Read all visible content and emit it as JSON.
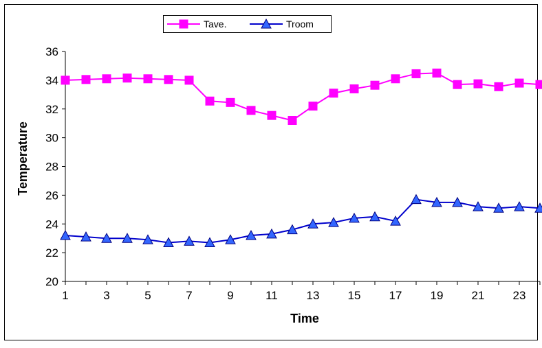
{
  "chart_data": {
    "type": "line",
    "title": "",
    "xlabel": "Time",
    "ylabel": "Temperature",
    "x": [
      1,
      2,
      3,
      4,
      5,
      6,
      7,
      8,
      9,
      10,
      11,
      12,
      13,
      14,
      15,
      16,
      17,
      18,
      19,
      20,
      21,
      22,
      23,
      24
    ],
    "x_tick_labels": [
      "1",
      "3",
      "5",
      "7",
      "9",
      "11",
      "13",
      "15",
      "17",
      "19",
      "21",
      "23"
    ],
    "y_tick_labels": [
      "20",
      "22",
      "24",
      "26",
      "28",
      "30",
      "32",
      "34",
      "36"
    ],
    "ylim": [
      20,
      36
    ],
    "xlim": [
      1,
      24
    ],
    "grid": false,
    "legend_position": "top-center",
    "series": [
      {
        "name": "Tave.",
        "color": "#ff00ff",
        "marker": "square",
        "values": [
          34.0,
          34.05,
          34.1,
          34.15,
          34.1,
          34.05,
          34.0,
          32.55,
          32.45,
          31.9,
          31.55,
          31.2,
          32.2,
          33.1,
          33.4,
          33.65,
          34.1,
          34.45,
          34.5,
          33.7,
          33.75,
          33.55,
          33.8,
          33.7
        ]
      },
      {
        "name": "Troom",
        "color": "#0000cc",
        "marker": "triangle",
        "values": [
          23.2,
          23.1,
          23.0,
          23.0,
          22.9,
          22.7,
          22.8,
          22.7,
          22.9,
          23.2,
          23.3,
          23.6,
          24.0,
          24.1,
          24.4,
          24.5,
          24.2,
          25.7,
          25.5,
          25.5,
          25.2,
          25.1,
          25.2,
          25.1
        ]
      }
    ]
  }
}
